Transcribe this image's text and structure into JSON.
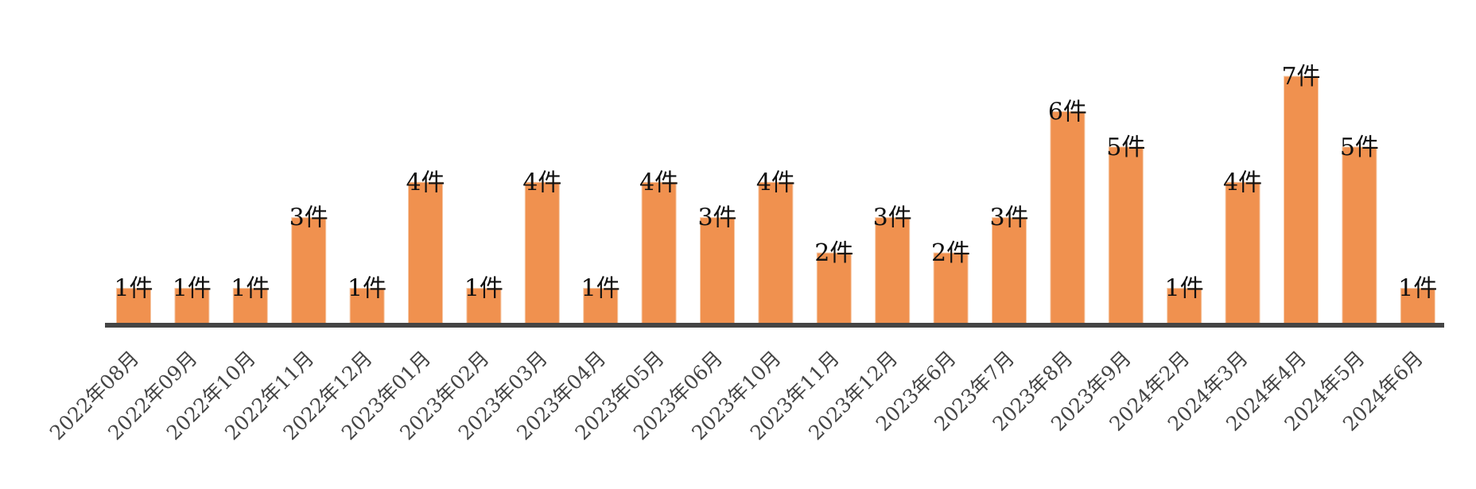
{
  "chart_data": {
    "type": "bar",
    "title": "",
    "xlabel": "",
    "ylabel": "",
    "categories": [
      "2022年08月",
      "2022年09月",
      "2022年10月",
      "2022年11月",
      "2022年12月",
      "2023年01月",
      "2023年02月",
      "2023年03月",
      "2023年04月",
      "2023年05月",
      "2023年06月",
      "2023年10月",
      "2023年11月",
      "2023年12月",
      "2023年6月",
      "2023年7月",
      "2023年8月",
      "2023年9月",
      "2024年2月",
      "2024年3月",
      "2024年4月",
      "2024年5月",
      "2024年6月"
    ],
    "values": [
      1,
      1,
      1,
      3,
      1,
      4,
      1,
      4,
      1,
      4,
      3,
      4,
      2,
      3,
      2,
      3,
      6,
      5,
      1,
      4,
      7,
      5,
      1
    ],
    "value_labels": [
      "1件",
      "1件",
      "1件",
      "3件",
      "1件",
      "4件",
      "1件",
      "4件",
      "1件",
      "4件",
      "3件",
      "4件",
      "2件",
      "3件",
      "2件",
      "3件",
      "6件",
      "5件",
      "1件",
      "4件",
      "7件",
      "5件",
      "1件"
    ],
    "ylim": [
      0,
      7
    ],
    "grid": false,
    "legend": "none",
    "colors": {
      "bar": "#f0914f",
      "bar_edge": "#f6c9a6",
      "axis": "#444444",
      "label": "#111111"
    }
  }
}
